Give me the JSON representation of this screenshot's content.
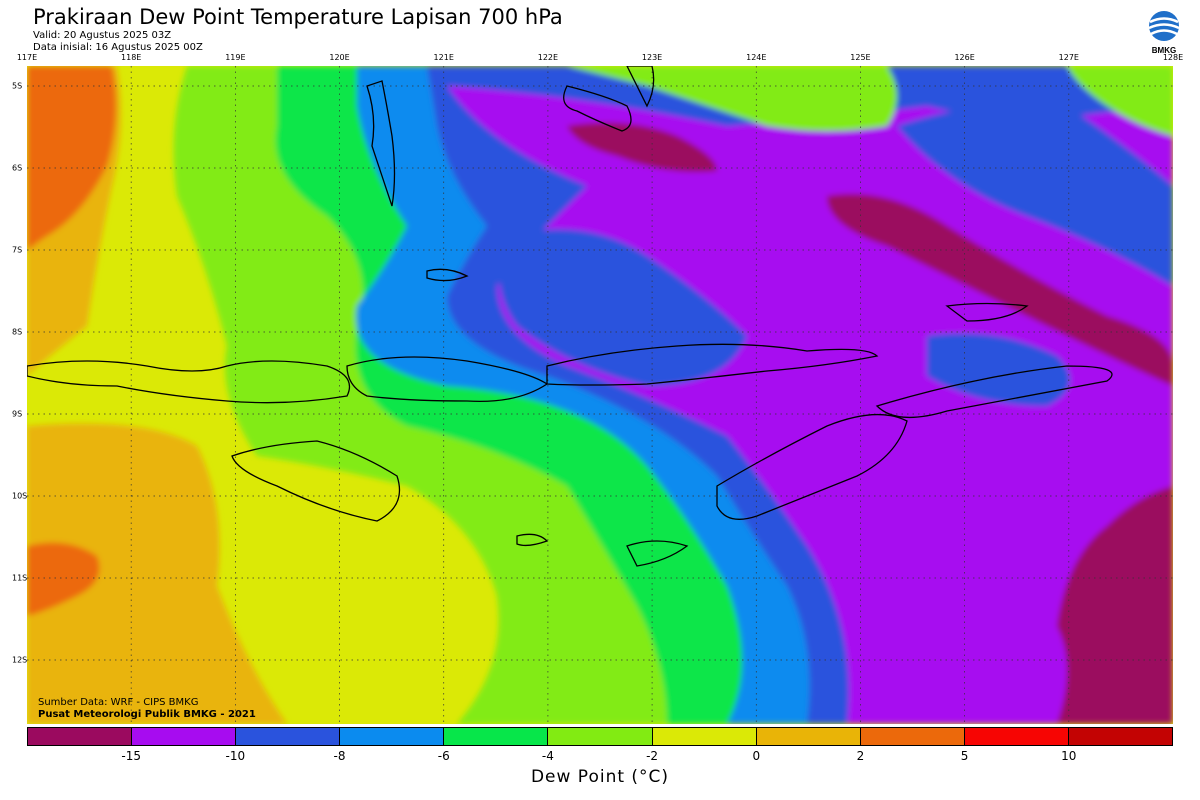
{
  "header": {
    "title": "Prakiraan Dew Point Temperature Lapisan 700 hPa",
    "valid": "Valid: 20 Agustus 2025 03Z",
    "initial": "Data inisial: 16 Agustus 2025 00Z"
  },
  "logo": {
    "icon": "bmkg-logo-icon",
    "text": "BMKG"
  },
  "axes": {
    "longitudes": [
      "117E",
      "118E",
      "119E",
      "120E",
      "121E",
      "122E",
      "123E",
      "124E",
      "125E",
      "126E",
      "127E",
      "128E"
    ],
    "latitudes": [
      "5S",
      "6S",
      "7S",
      "8S",
      "9S",
      "10S",
      "11S",
      "12S"
    ]
  },
  "credits": {
    "source": "Sumber Data: WRF - CIPS BMKG",
    "org": "Pusat Meteorologi Publik BMKG - 2021"
  },
  "legend": {
    "title": "Dew Point (°C)",
    "colors": [
      "#9b0a5f",
      "#a70cf0",
      "#2a53dd",
      "#0b8bef",
      "#07e64a",
      "#82eb12",
      "#dbe906",
      "#e9b407",
      "#ec690b",
      "#f70503",
      "#c30303"
    ],
    "labels": [
      "-15",
      "-10",
      "-8",
      "-6",
      "-4",
      "-2",
      "0",
      "2",
      "5",
      "10"
    ]
  }
}
